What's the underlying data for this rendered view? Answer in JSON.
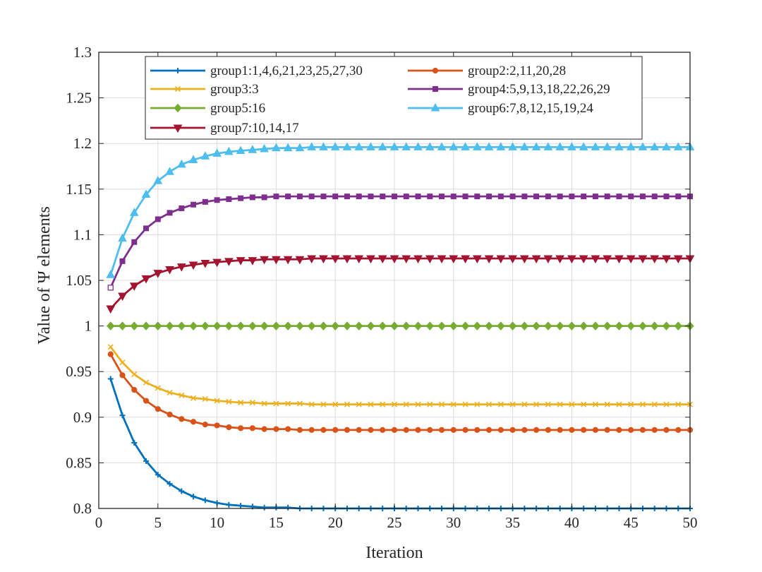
{
  "chart_data": {
    "type": "line",
    "title": "",
    "xlabel": "Iteration",
    "ylabel": "Value of Ψ elements",
    "xlim": [
      0,
      50
    ],
    "ylim": [
      0.8,
      1.3
    ],
    "xticks": [
      "0",
      "5",
      "10",
      "15",
      "20",
      "25",
      "30",
      "35",
      "40",
      "45",
      "50"
    ],
    "yticks": [
      "0.8",
      "0.85",
      "0.9",
      "0.95",
      "1",
      "1.05",
      "1.1",
      "1.15",
      "1.2",
      "1.25",
      "1.3"
    ],
    "grid": true,
    "legend_position": "top",
    "x": [
      1,
      2,
      3,
      4,
      5,
      6,
      7,
      8,
      9,
      10,
      11,
      12,
      13,
      14,
      15,
      16,
      17,
      18,
      19,
      20,
      21,
      22,
      23,
      24,
      25,
      26,
      27,
      28,
      29,
      30,
      31,
      32,
      33,
      34,
      35,
      36,
      37,
      38,
      39,
      40,
      41,
      42,
      43,
      44,
      45,
      46,
      47,
      48,
      49,
      50
    ],
    "series": [
      {
        "name": "group1:1,4,6,21,23,25,27,30",
        "color": "#0072BD",
        "marker": "plus",
        "values": [
          0.942,
          0.902,
          0.872,
          0.852,
          0.837,
          0.827,
          0.819,
          0.813,
          0.809,
          0.806,
          0.804,
          0.803,
          0.802,
          0.801,
          0.801,
          0.801,
          0.8,
          0.8,
          0.8,
          0.8,
          0.8,
          0.8,
          0.8,
          0.8,
          0.8,
          0.8,
          0.8,
          0.8,
          0.8,
          0.8,
          0.8,
          0.8,
          0.8,
          0.8,
          0.8,
          0.8,
          0.8,
          0.8,
          0.8,
          0.8,
          0.8,
          0.8,
          0.8,
          0.8,
          0.8,
          0.8,
          0.8,
          0.8,
          0.8,
          0.8
        ]
      },
      {
        "name": "group2:2,11,20,28",
        "color": "#D95319",
        "marker": "circle",
        "values": [
          0.969,
          0.946,
          0.93,
          0.918,
          0.909,
          0.903,
          0.898,
          0.895,
          0.892,
          0.891,
          0.889,
          0.888,
          0.888,
          0.887,
          0.887,
          0.887,
          0.886,
          0.886,
          0.886,
          0.886,
          0.886,
          0.886,
          0.886,
          0.886,
          0.886,
          0.886,
          0.886,
          0.886,
          0.886,
          0.886,
          0.886,
          0.886,
          0.886,
          0.886,
          0.886,
          0.886,
          0.886,
          0.886,
          0.886,
          0.886,
          0.886,
          0.886,
          0.886,
          0.886,
          0.886,
          0.886,
          0.886,
          0.886,
          0.886,
          0.886
        ]
      },
      {
        "name": "group3:3",
        "color": "#EDB120",
        "marker": "x",
        "values": [
          0.977,
          0.96,
          0.947,
          0.938,
          0.932,
          0.927,
          0.924,
          0.921,
          0.92,
          0.918,
          0.917,
          0.916,
          0.916,
          0.915,
          0.915,
          0.915,
          0.915,
          0.914,
          0.914,
          0.914,
          0.914,
          0.914,
          0.914,
          0.914,
          0.914,
          0.914,
          0.914,
          0.914,
          0.914,
          0.914,
          0.914,
          0.914,
          0.914,
          0.914,
          0.914,
          0.914,
          0.914,
          0.914,
          0.914,
          0.914,
          0.914,
          0.914,
          0.914,
          0.914,
          0.914,
          0.914,
          0.914,
          0.914,
          0.914,
          0.914
        ]
      },
      {
        "name": "group4:5,9,13,18,22,26,29",
        "color": "#7E2F8E",
        "marker": "square",
        "values": [
          1.042,
          1.071,
          1.092,
          1.107,
          1.117,
          1.124,
          1.129,
          1.133,
          1.136,
          1.138,
          1.139,
          1.14,
          1.141,
          1.141,
          1.142,
          1.142,
          1.142,
          1.142,
          1.142,
          1.142,
          1.142,
          1.142,
          1.142,
          1.142,
          1.142,
          1.142,
          1.142,
          1.142,
          1.142,
          1.142,
          1.142,
          1.142,
          1.142,
          1.142,
          1.142,
          1.142,
          1.142,
          1.142,
          1.142,
          1.142,
          1.142,
          1.142,
          1.142,
          1.142,
          1.142,
          1.142,
          1.142,
          1.142,
          1.142,
          1.142
        ]
      },
      {
        "name": "group5:16",
        "color": "#77AC30",
        "marker": "diamond",
        "values": [
          1,
          1,
          1,
          1,
          1,
          1,
          1,
          1,
          1,
          1,
          1,
          1,
          1,
          1,
          1,
          1,
          1,
          1,
          1,
          1,
          1,
          1,
          1,
          1,
          1,
          1,
          1,
          1,
          1,
          1,
          1,
          1,
          1,
          1,
          1,
          1,
          1,
          1,
          1,
          1,
          1,
          1,
          1,
          1,
          1,
          1,
          1,
          1,
          1,
          1
        ]
      },
      {
        "name": "group6:7,8,12,15,19,24",
        "color": "#4DBEEE",
        "marker": "triangle-up",
        "values": [
          1.056,
          1.096,
          1.124,
          1.144,
          1.159,
          1.169,
          1.177,
          1.182,
          1.186,
          1.189,
          1.191,
          1.192,
          1.193,
          1.194,
          1.195,
          1.195,
          1.195,
          1.196,
          1.196,
          1.196,
          1.196,
          1.196,
          1.196,
          1.196,
          1.196,
          1.196,
          1.196,
          1.196,
          1.196,
          1.196,
          1.196,
          1.196,
          1.196,
          1.196,
          1.196,
          1.196,
          1.196,
          1.196,
          1.196,
          1.196,
          1.196,
          1.196,
          1.196,
          1.196,
          1.196,
          1.196,
          1.196,
          1.196,
          1.196,
          1.196
        ]
      },
      {
        "name": "group7:10,14,17",
        "color": "#A2142F",
        "marker": "triangle-down",
        "values": [
          1.019,
          1.033,
          1.044,
          1.052,
          1.058,
          1.062,
          1.065,
          1.067,
          1.069,
          1.07,
          1.071,
          1.072,
          1.072,
          1.073,
          1.073,
          1.073,
          1.073,
          1.074,
          1.074,
          1.074,
          1.074,
          1.074,
          1.074,
          1.074,
          1.074,
          1.074,
          1.074,
          1.074,
          1.074,
          1.074,
          1.074,
          1.074,
          1.074,
          1.074,
          1.074,
          1.074,
          1.074,
          1.074,
          1.074,
          1.074,
          1.074,
          1.074,
          1.074,
          1.074,
          1.074,
          1.074,
          1.074,
          1.074,
          1.074,
          1.074
        ]
      }
    ]
  }
}
